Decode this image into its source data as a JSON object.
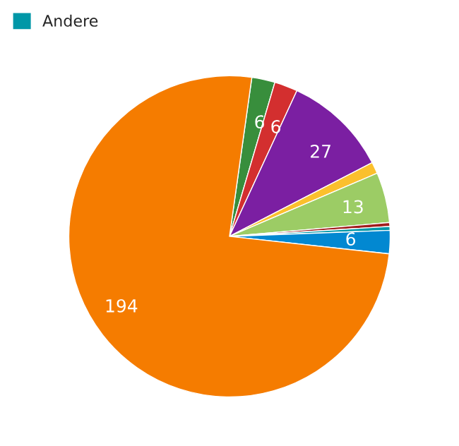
{
  "chart_data": {
    "type": "pie",
    "categories": [
      null,
      null,
      null,
      null,
      null,
      null,
      "Andere",
      null,
      null
    ],
    "values": [
      6,
      6,
      27,
      3,
      13,
      1,
      1,
      6,
      194
    ],
    "colors": [
      "#388e3c",
      "#d32f2f",
      "#7b1fa2",
      "#fbc02d",
      "#9ccc65",
      "#a11d1d",
      "#0097a7",
      "#0288d1",
      "#f57c00"
    ],
    "value_labels": [
      "6",
      "6",
      "27",
      null,
      "13",
      null,
      null,
      "6",
      "194"
    ],
    "legend": "top left"
  }
}
